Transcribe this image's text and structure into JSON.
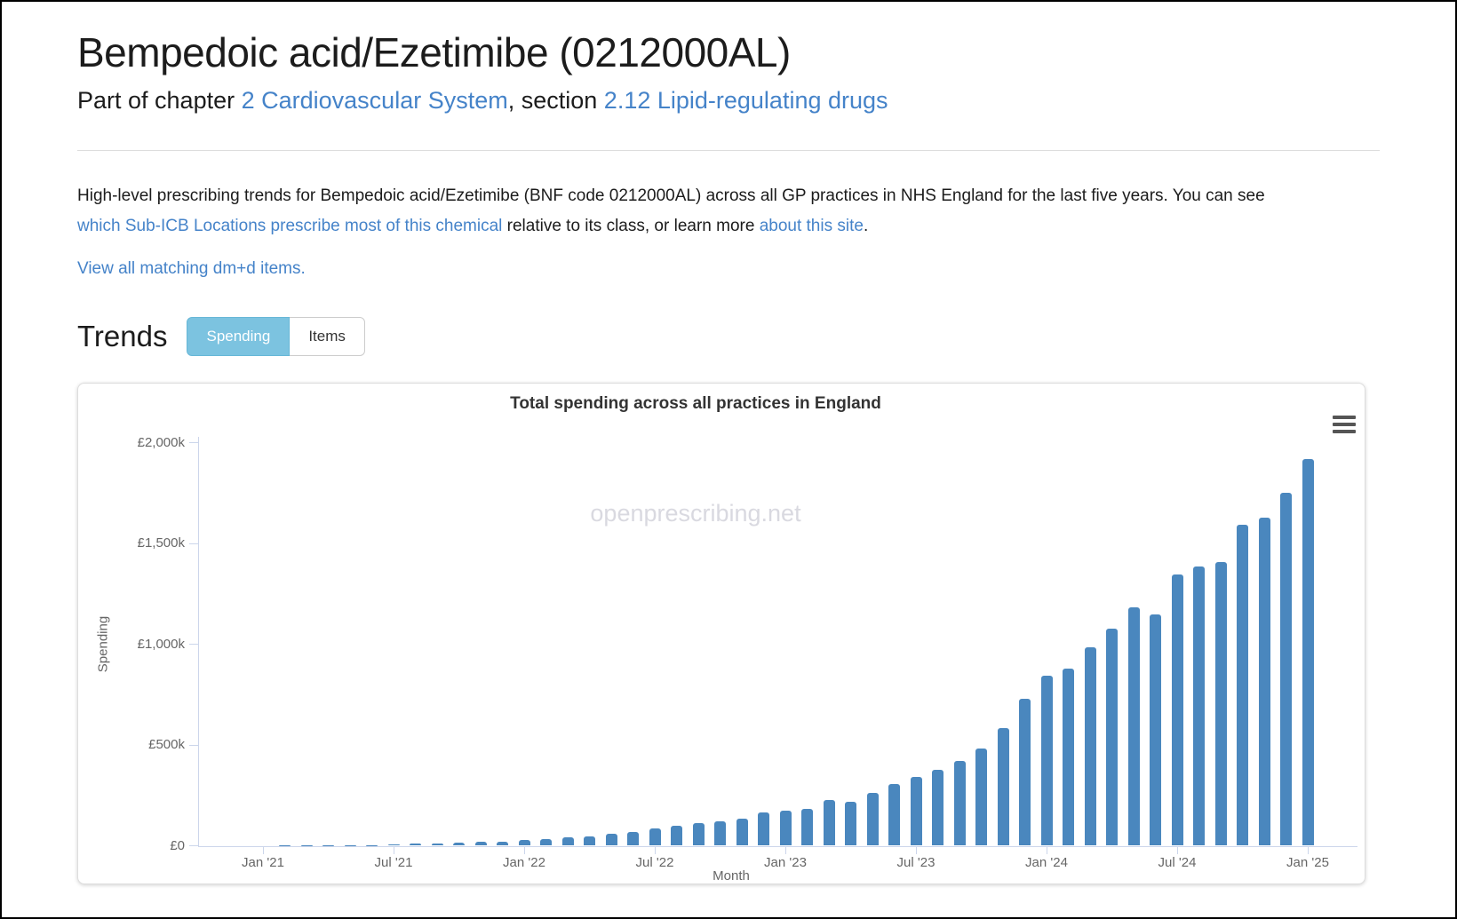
{
  "page": {
    "title": "Bempedoic acid/Ezetimibe (0212000AL)",
    "subtitle": {
      "prefix": "Part of chapter ",
      "chapter_link": "2 Cardiovascular System",
      "middle": ", section ",
      "section_link": "2.12 Lipid-regulating drugs"
    },
    "intro": {
      "text_1": "High-level prescribing trends for Bempedoic acid/Ezetimibe (BNF code 0212000AL) across all GP practices in NHS England for the last five years. You can see ",
      "link_1": "which Sub-ICB Locations prescribe most of this chemical",
      "text_2": " relative to its class, or learn more ",
      "link_2": "about this site",
      "text_3": ".",
      "dmd_link": "View all matching dm+d items."
    },
    "trends": {
      "heading": "Trends",
      "buttons": [
        {
          "label": "Spending",
          "active": true
        },
        {
          "label": "Items",
          "active": false
        }
      ]
    }
  },
  "colors": {
    "bar": "#4a87be",
    "link": "#4583c9",
    "active_button_bg": "#7cc3e0",
    "axis": "#ccd6eb",
    "axis_text": "#666666",
    "watermark_text": "#d9d9e0"
  },
  "chart_data": {
    "type": "bar",
    "title": "Total spending across all practices in England",
    "watermark": "openprescribing.net",
    "xlabel": "Month",
    "ylabel": "Spending",
    "unit": "GBP thousands",
    "ylim": [
      0,
      2000
    ],
    "grid": false,
    "yticks": [
      {
        "v": 0,
        "label": "£0"
      },
      {
        "v": 500,
        "label": "£500k"
      },
      {
        "v": 1000,
        "label": "£1,000k"
      },
      {
        "v": 1500,
        "label": "£1,500k"
      },
      {
        "v": 2000,
        "label": "£2,000k"
      }
    ],
    "xticks": [
      "Jan '21",
      "Jul '21",
      "Jan '22",
      "Jul '22",
      "Jan '23",
      "Jul '23",
      "Jan '24",
      "Jul '24",
      "Jan '25"
    ],
    "categories": [
      "Feb '21",
      "Mar '21",
      "Apr '21",
      "May '21",
      "Jun '21",
      "Jul '21",
      "Aug '21",
      "Sep '21",
      "Oct '21",
      "Nov '21",
      "Dec '21",
      "Jan '22",
      "Feb '22",
      "Mar '22",
      "Apr '22",
      "May '22",
      "Jun '22",
      "Jul '22",
      "Aug '22",
      "Sep '22",
      "Oct '22",
      "Nov '22",
      "Dec '22",
      "Jan '23",
      "Feb '23",
      "Mar '23",
      "Apr '23",
      "May '23",
      "Jun '23",
      "Jul '23",
      "Aug '23",
      "Sep '23",
      "Oct '23",
      "Nov '23",
      "Dec '23",
      "Jan '24",
      "Feb '24",
      "Mar '24",
      "Apr '24",
      "May '24",
      "Jun '24",
      "Jul '24",
      "Aug '24",
      "Sep '24",
      "Oct '24",
      "Nov '24",
      "Dec '24",
      "Jan '25"
    ],
    "values": [
      0.4,
      0.8,
      1.5,
      2.5,
      4,
      6,
      9,
      12,
      15,
      18,
      22,
      27,
      33,
      40,
      48,
      58,
      70,
      84,
      99,
      111,
      121,
      136,
      165,
      173,
      184,
      227,
      217,
      263,
      305,
      340,
      378,
      422,
      484,
      584,
      730,
      845,
      880,
      983,
      1076,
      1181,
      1149,
      1347,
      1387,
      1409,
      1594,
      1626,
      1751,
      1920
    ]
  }
}
